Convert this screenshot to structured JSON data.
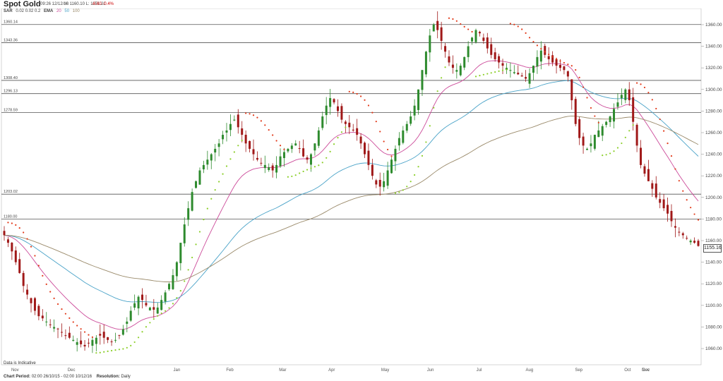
{
  "header": {
    "title": "Spot Gold",
    "time": "09:26 12/12/16",
    "ohlc": "H: 1160.10  L: 1151.21",
    "change": "-6.60  -0.4%",
    "sar_label": "SAR",
    "sar_params": "0.02  0.02  0.2",
    "ema_label": "EMA",
    "ema_params": [
      "20",
      "50",
      "100"
    ]
  },
  "footer": {
    "period_label": "Chart Period:",
    "period_value": "02:00 26/10/15 - 02:00 10/12/16",
    "resolution_label": "Resolution:",
    "resolution_value": "Daily",
    "indicative_note": "Data is Indicative"
  },
  "colors": {
    "up": "#2e8b2e",
    "down": "#a01818",
    "ema20": "#cc4b9a",
    "ema50": "#4aa3c8",
    "ema100": "#9a8a6a",
    "sar_bull": "#8ccf2a",
    "sar_bear": "#e23a1a",
    "levels": "#555555"
  },
  "chart_data": {
    "type": "candlestick",
    "title": "Spot Gold",
    "ylim": [
      1045,
      1375
    ],
    "y_ticks": [
      1060,
      1080,
      1100,
      1120,
      1140,
      1160,
      1180,
      1200,
      1220,
      1240,
      1260,
      1280,
      1300,
      1320,
      1340,
      1360
    ],
    "x_ticks": [
      "Nov",
      "Dec",
      "Jan",
      "Feb",
      "Mar",
      "Apr",
      "May",
      "Jun",
      "Jul",
      "Aug",
      "Sep",
      "Oct",
      "Nov",
      "Dec"
    ],
    "levels": [
      {
        "label": "1360.14",
        "value": 1360.14
      },
      {
        "label": "1343.36",
        "value": 1343.36
      },
      {
        "label": "1308.40",
        "value": 1308.4
      },
      {
        "label": "1296.13",
        "value": 1296.13
      },
      {
        "label": "1278.59",
        "value": 1278.59
      },
      {
        "label": "1203.02",
        "value": 1203.02
      },
      {
        "label": "1180.00",
        "value": 1180.0
      }
    ],
    "last_price": "1155.16",
    "close_series": [
      1165,
      1158,
      1150,
      1140,
      1130,
      1118,
      1110,
      1102,
      1095,
      1090,
      1088,
      1085,
      1082,
      1080,
      1078,
      1075,
      1072,
      1070,
      1068,
      1066,
      1064,
      1062,
      1065,
      1068,
      1070,
      1072,
      1070,
      1068,
      1066,
      1068,
      1072,
      1078,
      1085,
      1095,
      1102,
      1108,
      1105,
      1100,
      1098,
      1096,
      1098,
      1105,
      1112,
      1120,
      1128,
      1140,
      1158,
      1175,
      1190,
      1205,
      1215,
      1225,
      1230,
      1235,
      1240,
      1245,
      1250,
      1258,
      1262,
      1268,
      1272,
      1265,
      1258,
      1250,
      1245,
      1240,
      1235,
      1232,
      1230,
      1228,
      1225,
      1230,
      1238,
      1242,
      1245,
      1248,
      1250,
      1245,
      1238,
      1235,
      1240,
      1250,
      1262,
      1275,
      1285,
      1292,
      1288,
      1280,
      1272,
      1268,
      1265,
      1262,
      1258,
      1250,
      1240,
      1230,
      1220,
      1212,
      1210,
      1215,
      1225,
      1235,
      1245,
      1255,
      1262,
      1268,
      1275,
      1285,
      1300,
      1318,
      1335,
      1350,
      1360,
      1355,
      1345,
      1335,
      1325,
      1320,
      1318,
      1322,
      1330,
      1340,
      1348,
      1355,
      1352,
      1345,
      1338,
      1332,
      1328,
      1325,
      1322,
      1320,
      1318,
      1316,
      1314,
      1312,
      1310,
      1315,
      1322,
      1330,
      1336,
      1332,
      1328,
      1325,
      1322,
      1320,
      1318,
      1312,
      1290,
      1268,
      1255,
      1248,
      1245,
      1250,
      1258,
      1262,
      1266,
      1270,
      1275,
      1282,
      1288,
      1295,
      1300,
      1290,
      1270,
      1248,
      1230,
      1222,
      1215,
      1208,
      1200,
      1195,
      1190,
      1185,
      1178,
      1172,
      1168,
      1165,
      1162,
      1160,
      1158,
      1155
    ],
    "series": [
      {
        "name": "EMA 20"
      },
      {
        "name": "EMA 50"
      },
      {
        "name": "EMA 100"
      },
      {
        "name": "SAR"
      }
    ]
  }
}
